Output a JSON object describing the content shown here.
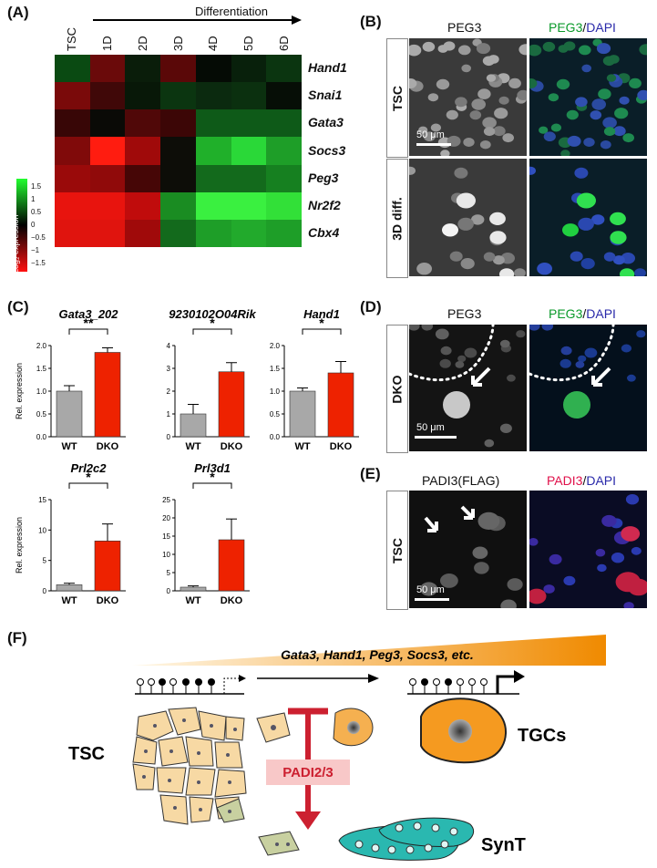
{
  "panels": {
    "A": "(A)",
    "B": "(B)",
    "C": "(C)",
    "D": "(D)",
    "E": "(E)",
    "F": "(F)"
  },
  "heatmap": {
    "arrow_label": "Differentiation",
    "columns": [
      "TSC",
      "1D",
      "2D",
      "3D",
      "4D",
      "5D",
      "6D"
    ],
    "genes": [
      "Hand1",
      "Snai1",
      "Gata3",
      "Socs3",
      "Peg3",
      "Nr2f2",
      "Cbx4"
    ],
    "legend_title": "Log₂ expression",
    "legend_ticks": [
      "1.5",
      "1",
      "0.5",
      "0",
      "−0.5",
      "−1",
      "−1.5"
    ],
    "colors": [
      [
        "#0a4a12",
        "#6a0a0a",
        "#0a1d0a",
        "#5a0808",
        "#050b05",
        "#08200b",
        "#0b3510"
      ],
      [
        "#7a0a0a",
        "#400808",
        "#081808",
        "#0b3510",
        "#0b2a0f",
        "#0b300f",
        "#060e06"
      ],
      [
        "#380606",
        "#0a0a06",
        "#500808",
        "#3c0606",
        "#0e5a18",
        "#0e5a18",
        "#0e5a18"
      ],
      [
        "#800a0a",
        "#ff1c10",
        "#a00a0a",
        "#0d0d08",
        "#20b02a",
        "#2ad838",
        "#1e9e28"
      ],
      [
        "#9a0a0a",
        "#900a0a",
        "#460606",
        "#0d0d08",
        "#136a1c",
        "#136a1c",
        "#168020"
      ],
      [
        "#e8140e",
        "#e8140e",
        "#c00c0c",
        "#1a8c22",
        "#3af040",
        "#3af040",
        "#32e038"
      ],
      [
        "#e0140e",
        "#e0140e",
        "#a00a0a",
        "#136a1c",
        "#1e9e28",
        "#22aa2c",
        "#1e9e28"
      ]
    ]
  },
  "panelB": {
    "title_gray": "PEG3",
    "title_merge_a": "PEG3",
    "title_merge_sep": "/",
    "title_merge_b": "DAPI",
    "row1": "TSC",
    "row2": "3D diff.",
    "scale": "50 μm"
  },
  "panelD": {
    "title_gray": "PEG3",
    "title_merge_a": "PEG3",
    "title_merge_sep": "/",
    "title_merge_b": "DAPI",
    "row": "DKO",
    "scale": "50 μm"
  },
  "panelE": {
    "title_gray": "PADI3(FLAG)",
    "title_merge_a": "PADI3",
    "title_merge_sep": "/",
    "title_merge_b": "DAPI",
    "row": "TSC",
    "scale": "50 μm"
  },
  "chart_data": [
    {
      "type": "bar",
      "title": "Gata3_202",
      "categories": [
        "WT",
        "DKO"
      ],
      "values": [
        1.0,
        1.85
      ],
      "errors": [
        0.12,
        0.1
      ],
      "colors": [
        "#a8a8a8",
        "#ee2200"
      ],
      "ylim": [
        0,
        2.0
      ],
      "yticks": [
        "0.0",
        "0.5",
        "1.0",
        "1.5",
        "2.0"
      ],
      "ylabel": "Rel. expression",
      "significance": "**"
    },
    {
      "type": "bar",
      "title": "9230102O04Rik",
      "categories": [
        "WT",
        "DKO"
      ],
      "values": [
        1.0,
        2.85
      ],
      "errors": [
        0.42,
        0.4
      ],
      "colors": [
        "#a8a8a8",
        "#ee2200"
      ],
      "ylim": [
        0,
        4
      ],
      "yticks": [
        "0",
        "1",
        "2",
        "3",
        "4"
      ],
      "ylabel": "",
      "significance": "*"
    },
    {
      "type": "bar",
      "title": "Hand1",
      "categories": [
        "WT",
        "DKO"
      ],
      "values": [
        1.0,
        1.4
      ],
      "errors": [
        0.07,
        0.25
      ],
      "colors": [
        "#a8a8a8",
        "#ee2200"
      ],
      "ylim": [
        0,
        2.0
      ],
      "yticks": [
        "0.0",
        "0.5",
        "1.0",
        "1.5",
        "2.0"
      ],
      "ylabel": "",
      "significance": "*"
    },
    {
      "type": "bar",
      "title": "Prl2c2",
      "categories": [
        "WT",
        "DKO"
      ],
      "values": [
        1.0,
        8.2
      ],
      "errors": [
        0.25,
        2.8
      ],
      "colors": [
        "#a8a8a8",
        "#ee2200"
      ],
      "ylim": [
        0,
        15
      ],
      "yticks": [
        "0",
        "5",
        "10",
        "15"
      ],
      "ylabel": "Rel. expression",
      "significance": "*"
    },
    {
      "type": "bar",
      "title": "Prl3d1",
      "categories": [
        "WT",
        "DKO"
      ],
      "values": [
        1.0,
        14.0
      ],
      "errors": [
        0.35,
        5.7
      ],
      "colors": [
        "#a8a8a8",
        "#ee2200"
      ],
      "ylim": [
        0,
        25
      ],
      "yticks": [
        "0",
        "5",
        "10",
        "15",
        "20",
        "25"
      ],
      "ylabel": "",
      "significance": "*"
    }
  ],
  "panelF": {
    "gradient_text": "Gata3, Hand1, Peg3, Socs3, etc.",
    "tsc": "TSC",
    "tgcs": "TGCs",
    "synt": "SynT",
    "padi": "PADI2/3"
  }
}
